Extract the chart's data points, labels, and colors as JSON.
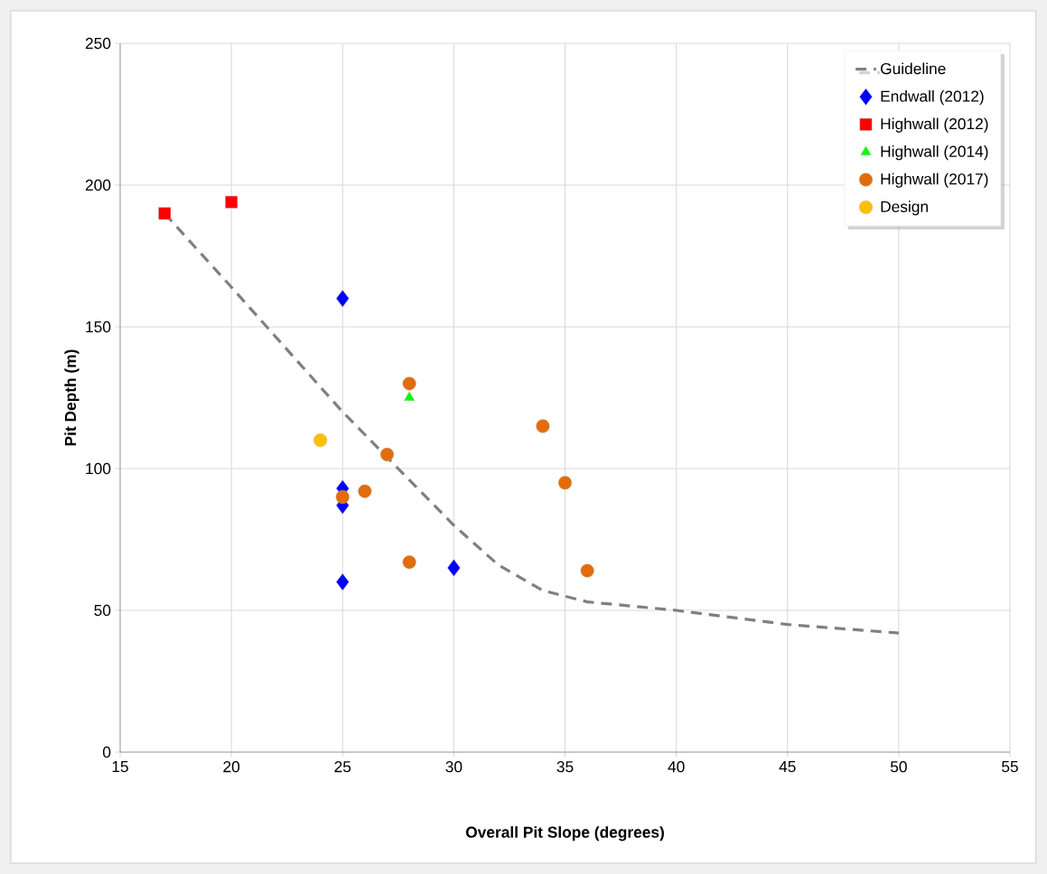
{
  "chart_data": {
    "type": "scatter",
    "xlabel": "Overall Pit Slope (degrees)",
    "ylabel": "Pit Depth (m)",
    "xlim": [
      15,
      55
    ],
    "xticks": [
      15,
      20,
      25,
      30,
      35,
      40,
      45,
      50,
      55
    ],
    "ylim": [
      0,
      250
    ],
    "yticks": [
      0,
      50,
      100,
      150,
      200,
      250
    ],
    "grid": true,
    "legend": "top right",
    "series": [
      {
        "name": "Guideline",
        "type": "line",
        "line_style": "dashed",
        "marker": "none",
        "color": "#808080",
        "x": [
          17,
          20,
          25,
          28,
          30,
          32,
          34,
          36,
          40,
          45,
          50
        ],
        "values": [
          190,
          164,
          120,
          96,
          80,
          66,
          57,
          53,
          50,
          45,
          42
        ]
      },
      {
        "name": "Endwall (2012)",
        "marker": "diamond",
        "color": "#0000ff",
        "x": [
          25,
          25,
          25,
          25,
          30
        ],
        "values": [
          160,
          93,
          87,
          60,
          65
        ]
      },
      {
        "name": "Highwall (2012)",
        "marker": "square",
        "color": "#ff0000",
        "x": [
          17,
          20
        ],
        "values": [
          190,
          194
        ]
      },
      {
        "name": "Highwall (2014)",
        "marker": "triangle",
        "color": "#00ff00",
        "x": [
          28
        ],
        "values": [
          125
        ]
      },
      {
        "name": "Highwall (2017)",
        "marker": "circle",
        "color": "#e36c0a",
        "x": [
          28,
          27,
          25,
          26,
          28,
          34,
          35,
          36
        ],
        "values": [
          130,
          105,
          90,
          92,
          67,
          115,
          95,
          64
        ]
      },
      {
        "name": "Design",
        "marker": "circle",
        "color": "#ffc000",
        "x": [
          24
        ],
        "values": [
          110
        ]
      }
    ]
  }
}
